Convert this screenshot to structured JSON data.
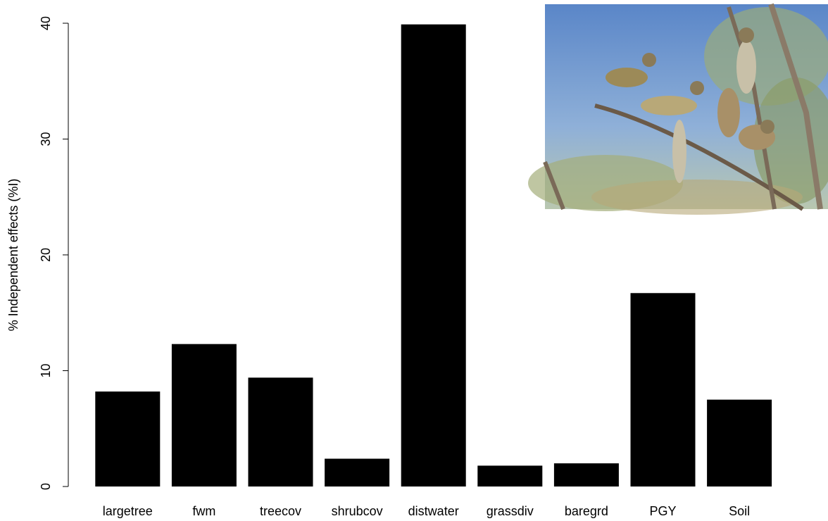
{
  "chart_data": {
    "type": "bar",
    "y_label": "% Independent effects (%I)",
    "categories": [
      "largetree",
      "fwm",
      "treecov",
      "shrubcov",
      "distwater",
      "grassdiv",
      "baregrd",
      "PGY",
      "Soil"
    ],
    "values": [
      8.2,
      12.3,
      9.4,
      2.4,
      39.9,
      1.8,
      2.0,
      16.7,
      7.5
    ],
    "color": "#000000",
    "ylim": [
      0,
      40
    ],
    "yticks": [
      0,
      10,
      20,
      30,
      40
    ],
    "grid": false
  }
}
